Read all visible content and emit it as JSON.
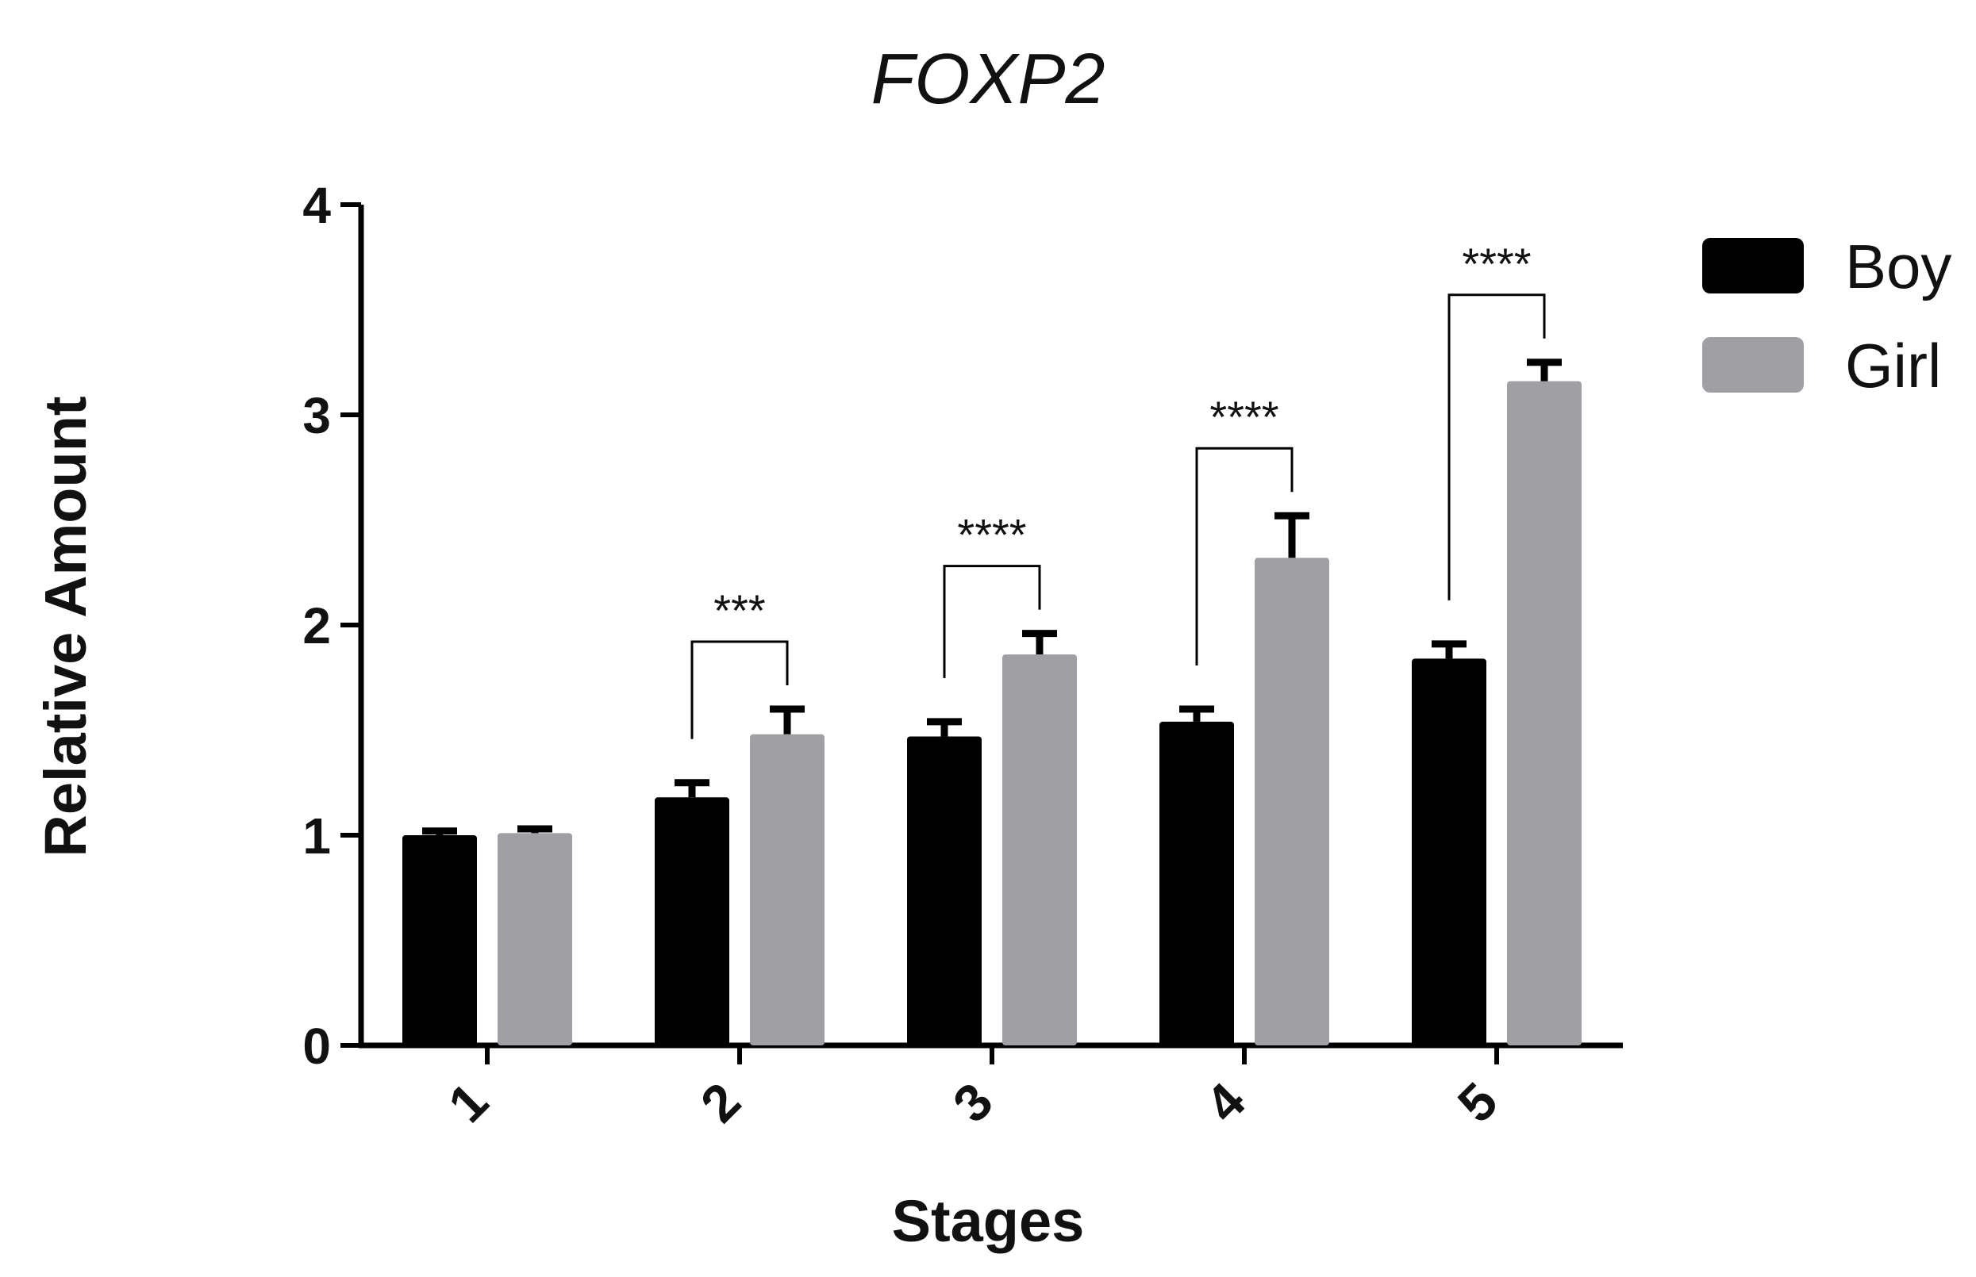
{
  "chart_data": {
    "type": "bar",
    "title": "FOXP2",
    "xlabel": "Stages",
    "ylabel": "Relative Amount",
    "categories": [
      "1",
      "2",
      "3",
      "4",
      "5"
    ],
    "series": [
      {
        "name": "Boy",
        "color": "#000000",
        "values": [
          1.0,
          1.18,
          1.47,
          1.54,
          1.84
        ],
        "errors": [
          0.02,
          0.07,
          0.07,
          0.06,
          0.07
        ]
      },
      {
        "name": "Girl",
        "color": "#a0a0a4",
        "values": [
          1.01,
          1.48,
          1.86,
          2.32,
          3.16
        ],
        "errors": [
          0.02,
          0.12,
          0.1,
          0.2,
          0.09
        ]
      }
    ],
    "ylim": [
      0,
      4
    ],
    "yticks": [
      0,
      1,
      2,
      3,
      4
    ],
    "grid": false,
    "legend_position": "top-right",
    "significance": [
      {
        "category": "2",
        "label": "***"
      },
      {
        "category": "3",
        "label": "****"
      },
      {
        "category": "4",
        "label": "****"
      },
      {
        "category": "5",
        "label": "****"
      }
    ]
  }
}
